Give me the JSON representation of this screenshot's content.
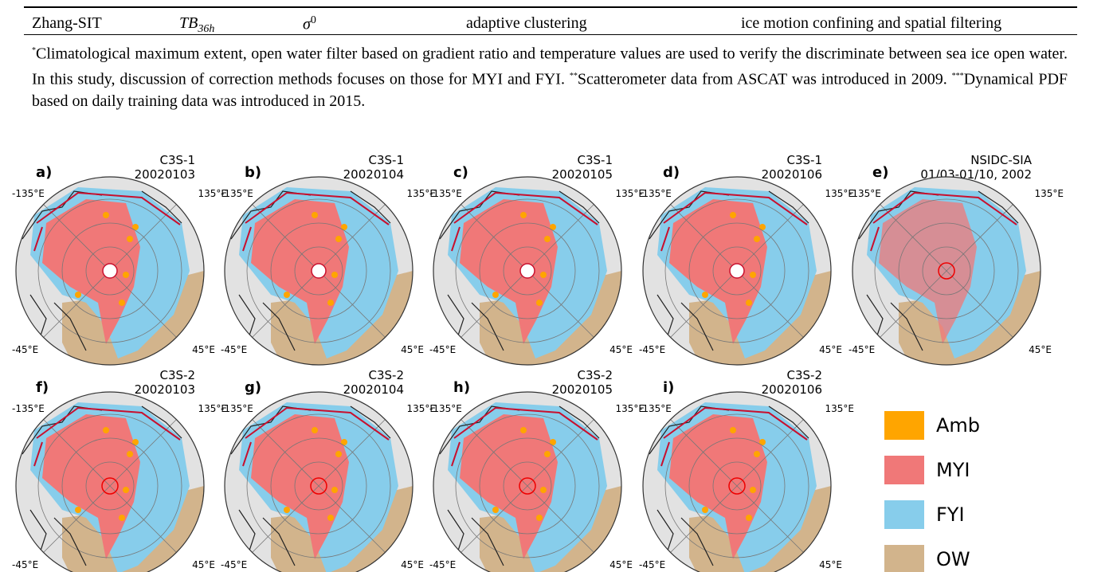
{
  "table": {
    "rows": [
      [
        {
          "text": "Zhang-SIT"
        },
        {
          "text": "TB",
          "sub": "36h"
        },
        {
          "text": "σ",
          "sup": "0"
        },
        {
          "text": "adaptive clustering"
        },
        {
          "text": "ice motion confining and spatial filtering"
        }
      ]
    ]
  },
  "footnote": [
    {
      "mark": "*",
      "text": "Climatological maximum extent, open water filter based on gradient ratio and temperature values are used to verify the discriminate between sea ice open water. In this study, discussion of correction methods focuses on those for MYI and FYI."
    },
    {
      "mark": "**",
      "text": "Scatterometer data from ASCAT was introduced in 2009."
    },
    {
      "mark": "***",
      "text": "Dynamical PDF based on daily training data was introduced in 2015."
    }
  ],
  "figure": {
    "lon_labels": [
      "-135°E",
      "135°E",
      "-45°E",
      "45°E"
    ],
    "panels": [
      {
        "label": "a)",
        "product": "C3S-1",
        "date": "20020103"
      },
      {
        "label": "b)",
        "product": "C3S-1",
        "date": "20020104"
      },
      {
        "label": "c)",
        "product": "C3S-1",
        "date": "20020105"
      },
      {
        "label": "d)",
        "product": "C3S-1",
        "date": "20020106"
      },
      {
        "label": "e)",
        "product": "NSIDC-SIA",
        "date": "01/03-01/10, 2002"
      },
      {
        "label": "f)",
        "product": "C3S-2",
        "date": "20020103"
      },
      {
        "label": "g)",
        "product": "C3S-2",
        "date": "20020104"
      },
      {
        "label": "h)",
        "product": "C3S-2",
        "date": "20020105"
      },
      {
        "label": "i)",
        "product": "C3S-2",
        "date": "20020106"
      }
    ],
    "legend": [
      {
        "name": "Amb",
        "color": "#ffa500"
      },
      {
        "name": "MYI",
        "color": "#f07878"
      },
      {
        "name": "FYI",
        "color": "#87cdeb"
      },
      {
        "name": "OW",
        "color": "#d2b48c"
      }
    ]
  }
}
